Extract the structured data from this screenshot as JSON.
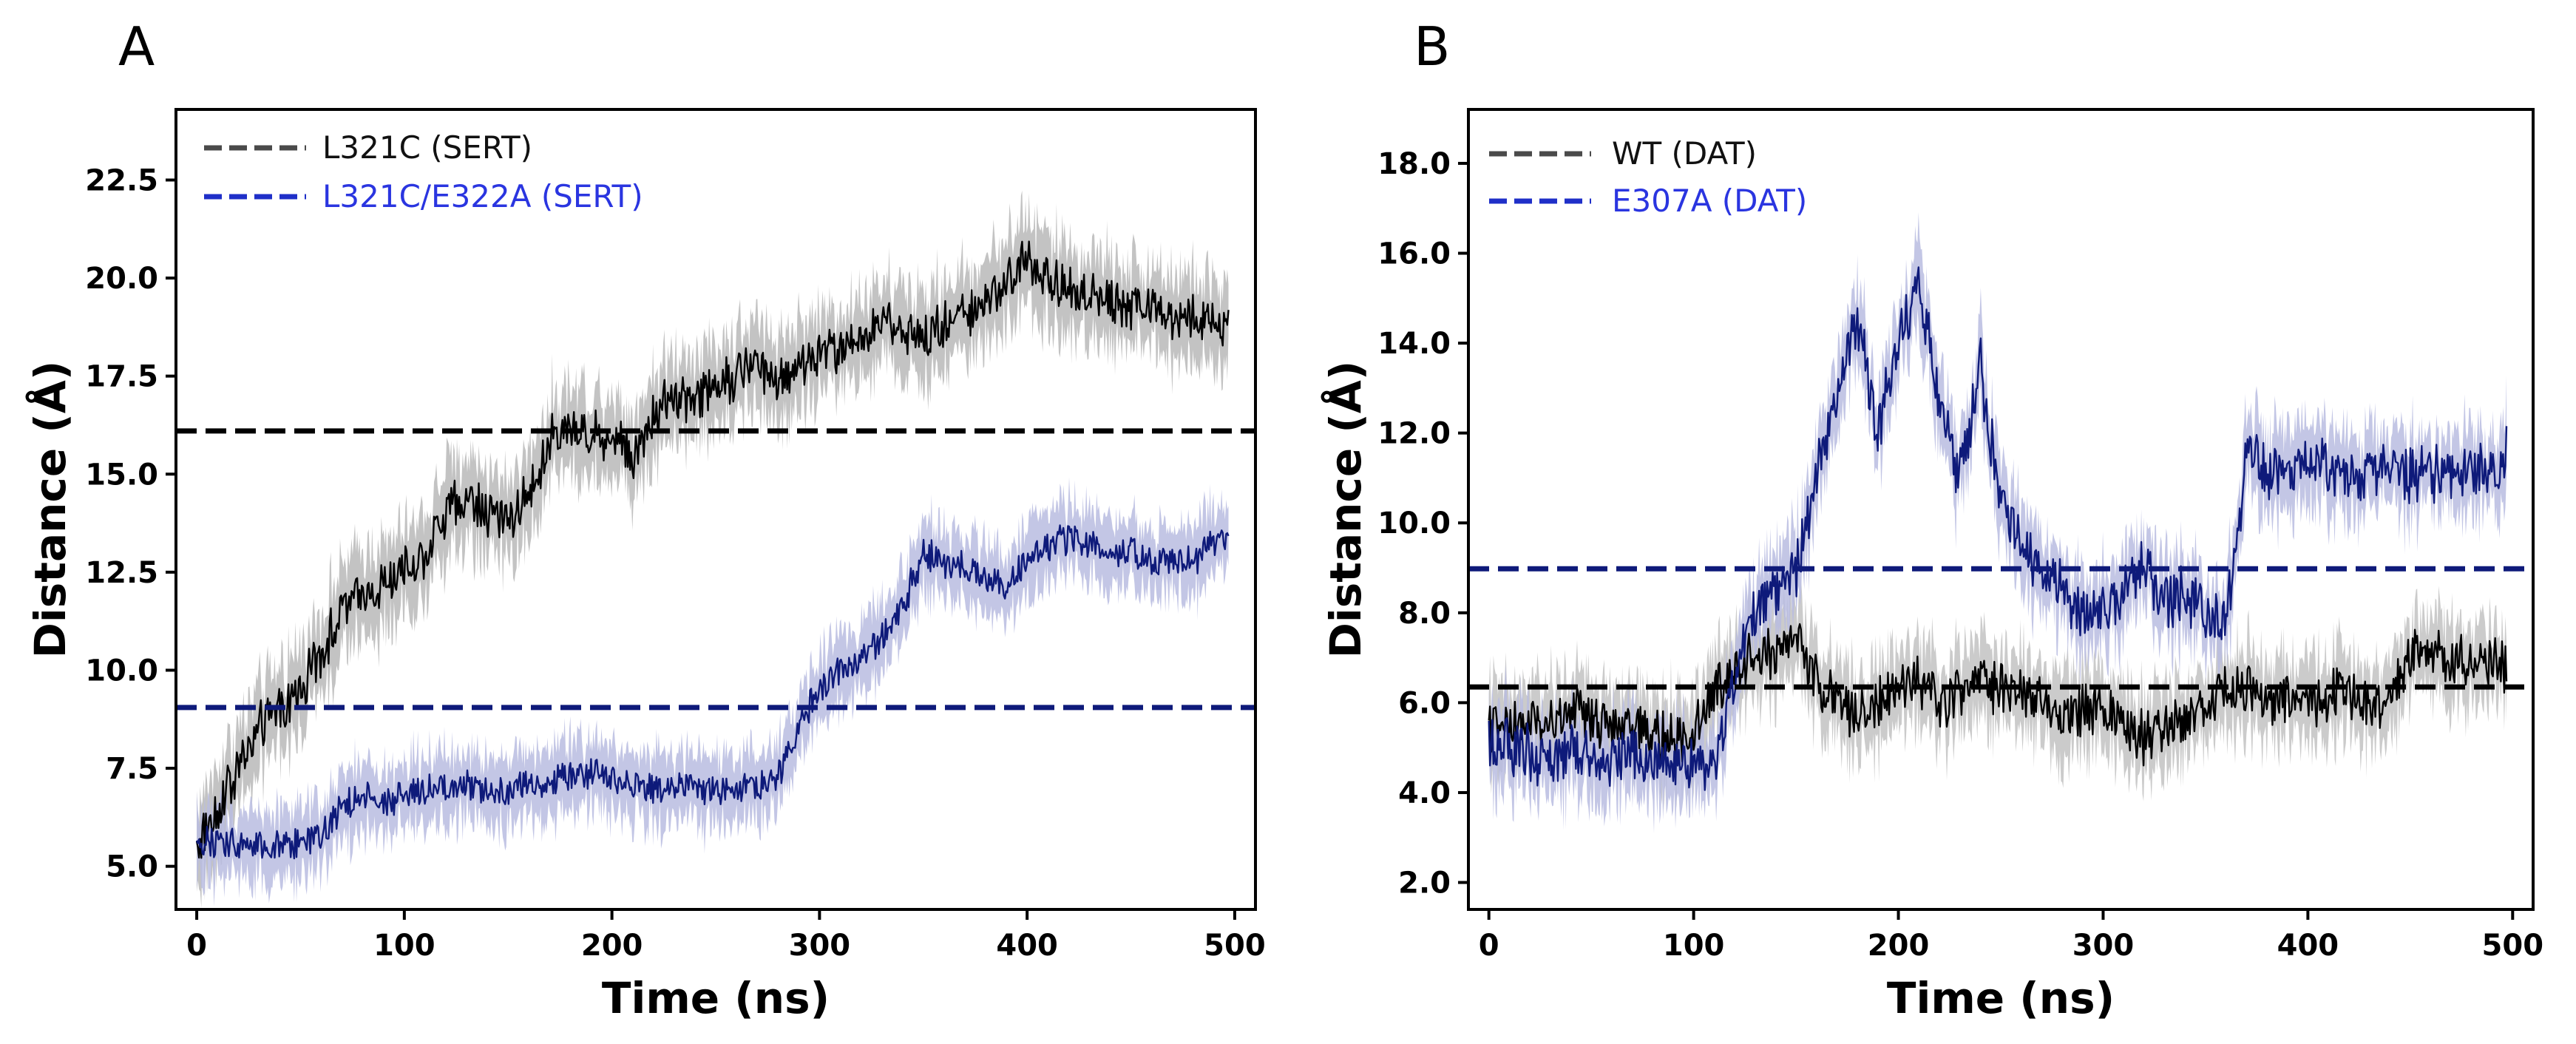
{
  "chart_data": [
    {
      "panel": "A",
      "type": "line",
      "xlabel": "Time (ns)",
      "ylabel": "Distance (Å)",
      "xlim": [
        -10,
        510
      ],
      "ylim": [
        3.9,
        24.3
      ],
      "xticks": [
        "0",
        "100",
        "200",
        "300",
        "400",
        "500"
      ],
      "xtick_values": [
        0,
        100,
        200,
        300,
        400,
        500
      ],
      "yticks": [
        "5.0",
        "7.5",
        "10.0",
        "12.5",
        "15.0",
        "17.5",
        "20.0",
        "22.5"
      ],
      "ytick_values": [
        5.0,
        7.5,
        10.0,
        12.5,
        15.0,
        17.5,
        20.0,
        22.5
      ],
      "legend_position": "top-left",
      "series": [
        {
          "name": "L321C (SERT)",
          "color": "#000000",
          "band_color": "#b9b9b9",
          "legend_color": "#4a4a4a",
          "label_color": "#111111",
          "reference": 16.1,
          "spread": 1.1,
          "noise": 0.55,
          "x": [
            0,
            10,
            20,
            30,
            40,
            50,
            60,
            70,
            80,
            90,
            100,
            110,
            120,
            130,
            140,
            150,
            160,
            170,
            180,
            190,
            200,
            210,
            220,
            230,
            240,
            250,
            260,
            270,
            280,
            290,
            300,
            310,
            320,
            330,
            340,
            350,
            360,
            370,
            380,
            390,
            400,
            410,
            420,
            430,
            440,
            450,
            460,
            470,
            480,
            490,
            497
          ],
          "values": [
            5.5,
            6.5,
            7.5,
            8.5,
            9.0,
            9.5,
            10.5,
            11.5,
            12.0,
            12.2,
            12.5,
            13.0,
            14.0,
            14.5,
            14.0,
            13.8,
            14.5,
            15.8,
            16.2,
            16.0,
            16.0,
            15.5,
            16.5,
            17.0,
            17.0,
            17.3,
            17.5,
            17.8,
            17.5,
            17.8,
            18.0,
            18.2,
            18.5,
            18.7,
            18.8,
            18.5,
            18.8,
            19.0,
            19.5,
            20.0,
            20.5,
            20.0,
            19.8,
            19.5,
            19.5,
            19.2,
            19.3,
            19.0,
            19.0,
            18.8,
            18.8
          ]
        },
        {
          "name": "L321C/E322A (SERT)",
          "color": "#0e1a7a",
          "band_color": "#b8bce0",
          "legend_color": "#1f2fc8",
          "label_color": "#2a35e0",
          "reference": 9.05,
          "spread": 0.9,
          "noise": 0.35,
          "x": [
            0,
            10,
            20,
            30,
            40,
            50,
            60,
            70,
            80,
            90,
            100,
            110,
            120,
            130,
            140,
            150,
            160,
            170,
            180,
            190,
            200,
            210,
            220,
            230,
            240,
            250,
            260,
            270,
            280,
            290,
            300,
            310,
            320,
            330,
            340,
            350,
            360,
            370,
            380,
            390,
            400,
            410,
            420,
            430,
            440,
            450,
            460,
            470,
            480,
            490,
            497
          ],
          "values": [
            5.6,
            5.6,
            5.6,
            5.5,
            5.6,
            5.6,
            5.7,
            6.5,
            6.8,
            6.6,
            6.8,
            7.0,
            6.9,
            7.0,
            7.0,
            7.0,
            7.1,
            7.1,
            7.3,
            7.4,
            7.2,
            7.1,
            7.0,
            7.0,
            7.0,
            6.9,
            6.9,
            7.0,
            7.2,
            8.6,
            9.5,
            10.0,
            10.3,
            10.8,
            11.6,
            13.0,
            12.8,
            12.6,
            12.3,
            12.2,
            12.8,
            13.2,
            13.4,
            13.2,
            13.0,
            13.0,
            12.8,
            12.8,
            12.8,
            13.2,
            13.3
          ]
        }
      ]
    },
    {
      "panel": "B",
      "type": "line",
      "xlabel": "Time (ns)",
      "ylabel": "Distance (Å)",
      "xlim": [
        -10,
        510
      ],
      "ylim": [
        1.4,
        19.2
      ],
      "xticks": [
        "0",
        "100",
        "200",
        "300",
        "400",
        "500"
      ],
      "xtick_values": [
        0,
        100,
        200,
        300,
        400,
        500
      ],
      "yticks": [
        "2.0",
        "4.0",
        "6.0",
        "8.0",
        "10.0",
        "12.0",
        "14.0",
        "16.0",
        "18.0"
      ],
      "ytick_values": [
        2.0,
        4.0,
        6.0,
        8.0,
        10.0,
        12.0,
        14.0,
        16.0,
        18.0
      ],
      "legend_position": "top-left",
      "series": [
        {
          "name": "WT (DAT)",
          "color": "#000000",
          "band_color": "#c2c2c2",
          "legend_color": "#4a4a4a",
          "label_color": "#111111",
          "reference": 6.35,
          "spread": 0.9,
          "noise": 0.5,
          "x": [
            0,
            10,
            20,
            30,
            40,
            50,
            60,
            70,
            80,
            90,
            100,
            110,
            120,
            130,
            140,
            150,
            160,
            170,
            180,
            190,
            200,
            210,
            220,
            230,
            240,
            250,
            260,
            270,
            280,
            290,
            300,
            310,
            320,
            330,
            340,
            350,
            360,
            370,
            380,
            390,
            400,
            410,
            420,
            430,
            440,
            450,
            460,
            470,
            480,
            490,
            497
          ],
          "values": [
            5.5,
            5.4,
            5.6,
            5.5,
            5.8,
            5.6,
            5.5,
            5.4,
            5.3,
            5.2,
            5.4,
            6.2,
            6.8,
            7.2,
            7.0,
            7.5,
            6.5,
            6.0,
            5.8,
            6.0,
            6.2,
            6.5,
            6.0,
            6.2,
            6.5,
            6.3,
            6.2,
            6.0,
            5.8,
            5.8,
            6.0,
            5.5,
            5.2,
            5.5,
            5.6,
            6.0,
            6.2,
            6.3,
            6.0,
            6.1,
            6.0,
            6.2,
            6.3,
            6.0,
            6.1,
            7.0,
            7.2,
            7.0,
            6.8,
            7.0,
            6.8
          ]
        },
        {
          "name": "E307A (DAT)",
          "color": "#0e1a7a",
          "band_color": "#b8bce0",
          "legend_color": "#1f2fc8",
          "label_color": "#2a35e0",
          "reference": 8.98,
          "spread": 0.9,
          "noise": 0.55,
          "x": [
            0,
            10,
            20,
            30,
            40,
            50,
            60,
            70,
            80,
            90,
            100,
            110,
            120,
            130,
            140,
            150,
            160,
            170,
            180,
            190,
            200,
            210,
            220,
            230,
            240,
            250,
            260,
            270,
            280,
            290,
            300,
            310,
            320,
            330,
            340,
            350,
            360,
            370,
            380,
            390,
            400,
            410,
            420,
            430,
            440,
            450,
            460,
            470,
            480,
            490,
            497
          ],
          "values": [
            5.2,
            5.0,
            4.9,
            4.8,
            4.9,
            4.8,
            4.7,
            4.8,
            4.7,
            4.6,
            4.7,
            4.6,
            6.5,
            8.0,
            8.5,
            9.0,
            11.0,
            13.0,
            14.5,
            12.0,
            14.0,
            15.5,
            12.5,
            11.0,
            13.5,
            10.5,
            9.5,
            9.0,
            8.5,
            8.0,
            8.0,
            8.5,
            9.0,
            8.2,
            8.5,
            8.0,
            7.8,
            11.5,
            11.2,
            11.0,
            11.3,
            11.2,
            11.0,
            11.1,
            11.2,
            11.0,
            11.1,
            11.0,
            11.0,
            11.2,
            11.6
          ]
        }
      ]
    }
  ]
}
